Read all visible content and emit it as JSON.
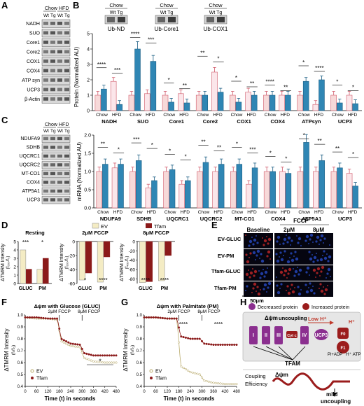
{
  "panel_letters": [
    "A",
    "B",
    "C",
    "D",
    "E",
    "F",
    "G",
    "H"
  ],
  "colors": {
    "chow_wt": "#f7d9d9",
    "chow_wt_stroke": "#d05a6a",
    "tg": "#2f86b4",
    "wt_hfd": "#fbe6ea",
    "tfam_dark": "#8b1a1a",
    "ev": "#f4ecc4",
    "purple": "#8b2f8f",
    "red_dark": "#9b1c1c"
  },
  "panelA": {
    "groups": [
      "Chow",
      "HFD"
    ],
    "lanes": [
      "Wt",
      "Tg",
      "Wt",
      "Tg"
    ],
    "rows": [
      "NADH",
      "SUO",
      "Core1",
      "Core2",
      "COX1",
      "COX4",
      "ATP syn",
      "UCP3",
      "β-Actin"
    ]
  },
  "panelB": {
    "insets": [
      {
        "groups": "Chow",
        "lanes": "Wt  Tg",
        "label": "Ub-ND"
      },
      {
        "groups": "Chow",
        "lanes": "Wt  Tg",
        "label": "Ub-Core1"
      },
      {
        "groups": "Chow",
        "lanes": "Wt  Tg",
        "label": "Ub-COX1"
      }
    ],
    "ylabel": "Protein (Normalized AU)",
    "xcats": [
      "Chow",
      "HFD"
    ],
    "yticks": [
      "0",
      "1",
      "2",
      "3",
      "4",
      "5"
    ]
  },
  "panelC": {
    "groups": [
      "Chow",
      "HFD"
    ],
    "lanes": [
      "Wt",
      "Tg",
      "Wt",
      "Tg"
    ],
    "rows": [
      "NDUFA9",
      "SDHB",
      "UQCRC1",
      "UQCRC2",
      "MT-CO1",
      "COX4",
      "ATP5A1",
      "UCP3"
    ],
    "ylabel": "mRNA (Normalized AU)",
    "xcats": [
      "Chow",
      "HFD"
    ],
    "yticks": [
      "0.0",
      "0.5",
      "1.0",
      "1.5",
      "2.0"
    ]
  },
  "panelD": {
    "legend": [
      "EV",
      "Tfam"
    ],
    "titles": [
      "Resting",
      "2μM FCCP",
      "8μM FCCP"
    ],
    "ylabel": "ΔTMRM Intensity",
    "ysub": "(f₅₅₀/f₀)",
    "ysub2": "(f₃₉₀/f₀)",
    "ysub3": "(f₄₅₀/f₀)",
    "xcats": [
      "GLUC",
      "PM"
    ],
    "yticks1": [
      "0",
      "1",
      "2",
      "3",
      "4",
      "5"
    ],
    "yticks2": [
      "-60",
      "-40",
      "-20",
      "0"
    ],
    "yticks3": [
      "-80",
      "-60",
      "-40",
      "-20",
      "0"
    ]
  },
  "panelE": {
    "cols": [
      "Baseline",
      "2μM",
      "8μM"
    ],
    "fccp": "FCCP",
    "rows": [
      "EV-GLUC",
      "EV-PM",
      "Tfam-GLUC",
      "Tfam-PM"
    ],
    "scale": "50μm"
  },
  "panelF": {
    "title": "Δψm with Glucose (GLUC)",
    "xlabel": "Time  (t) in seconds",
    "ylabel": "ΔTMRM Intensity",
    "ysub": "(fₜ/f₀)",
    "ann1": "2μM FCCP",
    "ann2": "8μM FCCP",
    "legend": [
      "EV",
      "Tfam"
    ],
    "star": "*",
    "xticks": [
      "0",
      "60",
      "120",
      "180",
      "240",
      "300",
      "360",
      "420",
      "480"
    ],
    "yticks": [
      "1.0",
      "0.9",
      "0.8",
      "0.7",
      "0.6",
      "0.5",
      "0.4"
    ]
  },
  "panelG": {
    "title": "Δψm with Palmitate (PM)",
    "xlabel": "Time  (t) in seconds",
    "ylabel": "ΔTMRM Intensity",
    "ysub": "(fₜ/f₀)",
    "ann1": "2μM FCCP",
    "ann2": "8μM FCCP",
    "legend": [
      "EV",
      "Tfam"
    ],
    "stars": [
      "****",
      "****"
    ],
    "xticks": [
      "0",
      "60",
      "120",
      "180",
      "240",
      "300",
      "360",
      "420",
      "480"
    ],
    "yticks": [
      "1.0",
      "0.9",
      "0.8",
      "0.7",
      "0.6",
      "0.5",
      "0.4"
    ]
  },
  "panelH": {
    "legend_dec": "Decreased protein",
    "legend_inc": "Increased protein",
    "dpsi": "Δψm",
    "uncoupling": "uncoupling",
    "lowh": "Low H⁺",
    "complexes": [
      "I",
      "II",
      "III",
      "Cyt c",
      "IV",
      "UCP3"
    ],
    "f0": "F0",
    "f1": "F1",
    "hplus": "H⁺",
    "tfam": "TFAM",
    "adp": "Pi+ADP",
    "hatp": "H⁺ ATP",
    "coupling": "Coupling",
    "efficiency": "Efficiency",
    "mild": "mild",
    "mild2": "uncoupling"
  },
  "chart_data": [
    {
      "type": "bar",
      "panel": "B",
      "ylabel": "Protein (Normalized AU)",
      "ylim": [
        0,
        5
      ],
      "categories": [
        "NADH",
        "SUO",
        "Core1",
        "Core2",
        "COX1",
        "COX4",
        "ATPsyn",
        "UCP3"
      ],
      "series": [
        {
          "name": "Wt Chow",
          "values": [
            1.0,
            1.0,
            1.0,
            1.0,
            1.0,
            1.0,
            1.0,
            1.0
          ]
        },
        {
          "name": "Tg Chow",
          "values": [
            1.4,
            4.0,
            0.55,
            1.0,
            0.55,
            1.0,
            1.9,
            0.5
          ]
        },
        {
          "name": "Wt HFD",
          "values": [
            1.9,
            1.1,
            1.1,
            2.5,
            1.2,
            1.0,
            0.4,
            1.0
          ]
        },
        {
          "name": "Tg HFD",
          "values": [
            0.4,
            3.2,
            0.5,
            1.2,
            1.0,
            1.0,
            2.0,
            0.45
          ]
        }
      ],
      "annotations": [
        "****",
        "***",
        "****",
        "***",
        "*",
        "**",
        "**",
        "*",
        "*",
        "**",
        "****",
        "**",
        "*",
        "****",
        "*",
        "*"
      ]
    },
    {
      "type": "bar",
      "panel": "C",
      "ylabel": "mRNA (Normalized AU)",
      "ylim": [
        0,
        2
      ],
      "categories": [
        "NDUFA9",
        "SDHB",
        "UQCRC1",
        "UQCRC2",
        "MT-CO1",
        "COX4",
        "ATP5A1",
        "UCP3"
      ],
      "series": [
        {
          "name": "Wt Chow",
          "values": [
            1.0,
            1.0,
            1.0,
            1.0,
            1.0,
            1.0,
            1.0,
            1.0
          ]
        },
        {
          "name": "Tg Chow",
          "values": [
            1.2,
            1.3,
            1.05,
            1.25,
            1.2,
            1.0,
            1.8,
            1.1
          ]
        },
        {
          "name": "Wt HFD",
          "values": [
            1.1,
            0.55,
            0.65,
            1.0,
            0.65,
            1.0,
            1.0,
            0.95
          ]
        },
        {
          "name": "Tg HFD",
          "values": [
            1.2,
            0.75,
            0.75,
            1.2,
            1.1,
            0.95,
            1.3,
            0.6
          ]
        }
      ],
      "annotations": [
        "**",
        "*",
        "***",
        "*",
        "*",
        "*",
        "**"
      ]
    },
    {
      "type": "bar",
      "panel": "D-resting",
      "title": "Resting",
      "categories": [
        "GLUC",
        "PM"
      ],
      "ylim": [
        0,
        5
      ],
      "series": [
        {
          "name": "EV",
          "values": [
            4.0,
            1.7
          ]
        },
        {
          "name": "Tfam",
          "values": [
            1.7,
            3.0
          ]
        }
      ],
      "annotations": [
        "***",
        "*"
      ]
    },
    {
      "type": "bar",
      "panel": "D-2uM",
      "title": "2μM FCCP",
      "categories": [
        "GLUC",
        "PM"
      ],
      "ylim": [
        -60,
        0
      ],
      "series": [
        {
          "name": "EV",
          "values": [
            -55,
            -58
          ]
        },
        {
          "name": "Tfam",
          "values": [
            -45,
            -22
          ]
        }
      ],
      "annotations": [
        "*",
        "****"
      ]
    },
    {
      "type": "bar",
      "panel": "D-8uM",
      "title": "8μM FCCP",
      "categories": [
        "GLUC",
        "PM"
      ],
      "ylim": [
        -90,
        0
      ],
      "series": [
        {
          "name": "EV",
          "values": [
            -88,
            -84
          ]
        },
        {
          "name": "Tfam",
          "values": [
            -86,
            -30
          ]
        }
      ],
      "annotations": [
        "****",
        "****"
      ]
    },
    {
      "type": "line",
      "panel": "F",
      "title": "Δψm with Glucose (GLUC)",
      "xlabel": "Time  (t) in seconds",
      "xlim": [
        0,
        480
      ],
      "ylim": [
        0.4,
        1.0
      ],
      "series": [
        {
          "name": "EV",
          "x": [
            0,
            60,
            120,
            170,
            190,
            240,
            290,
            310,
            360,
            420,
            480
          ],
          "y": [
            0.98,
            0.97,
            0.97,
            0.96,
            0.78,
            0.74,
            0.73,
            0.64,
            0.61,
            0.6,
            0.6
          ]
        },
        {
          "name": "Tfam",
          "x": [
            0,
            60,
            120,
            170,
            190,
            240,
            290,
            310,
            360,
            420,
            480
          ],
          "y": [
            0.98,
            0.98,
            0.97,
            0.97,
            0.8,
            0.76,
            0.75,
            0.68,
            0.66,
            0.66,
            0.66
          ]
        }
      ]
    },
    {
      "type": "line",
      "panel": "G",
      "title": "Δψm with Palmitate (PM)",
      "xlabel": "Time  (t) in seconds",
      "xlim": [
        0,
        480
      ],
      "ylim": [
        0.4,
        1.0
      ],
      "series": [
        {
          "name": "EV",
          "x": [
            0,
            60,
            120,
            170,
            190,
            240,
            290,
            310,
            360,
            420,
            480
          ],
          "y": [
            0.98,
            0.98,
            0.97,
            0.97,
            0.57,
            0.52,
            0.5,
            0.45,
            0.43,
            0.42,
            0.42
          ]
        },
        {
          "name": "Tfam",
          "x": [
            0,
            60,
            120,
            170,
            190,
            240,
            290,
            310,
            360,
            420,
            480
          ],
          "y": [
            0.98,
            0.98,
            0.97,
            0.97,
            0.82,
            0.8,
            0.8,
            0.76,
            0.75,
            0.75,
            0.75
          ]
        }
      ]
    }
  ]
}
